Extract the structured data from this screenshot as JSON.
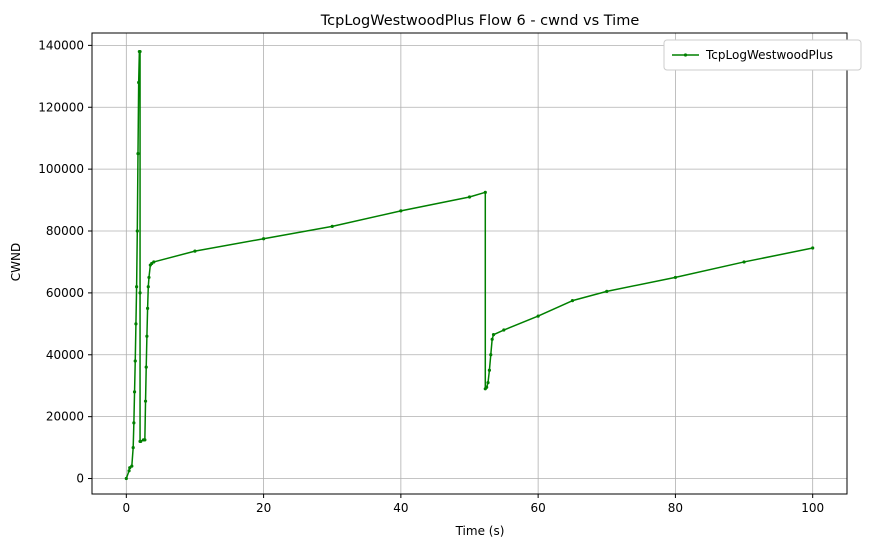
{
  "chart_data": {
    "type": "line",
    "title": "TcpLogWestwoodPlus Flow 6 - cwnd vs Time",
    "xlabel": "Time (s)",
    "ylabel": "CWND",
    "xlim": [
      -5,
      105
    ],
    "ylim": [
      -5000,
      144000
    ],
    "x_ticks": [
      0,
      20,
      40,
      60,
      80,
      100
    ],
    "x_tick_labels": [
      "0",
      "20",
      "40",
      "60",
      "80",
      "100"
    ],
    "y_ticks": [
      0,
      20000,
      40000,
      60000,
      80000,
      100000,
      120000,
      140000
    ],
    "y_tick_labels": [
      "0",
      "20000",
      "40000",
      "60000",
      "80000",
      "100000",
      "120000",
      "140000"
    ],
    "grid": true,
    "legend_position": "top-right",
    "series": [
      {
        "name": "TcpLogWestwoodPlus",
        "color": "#008000",
        "marker": "dot",
        "x": [
          0.0,
          0.4,
          0.5,
          0.8,
          1.0,
          1.1,
          1.2,
          1.3,
          1.4,
          1.5,
          1.6,
          1.7,
          1.8,
          1.9,
          2.0,
          2.0,
          2.0,
          2.1,
          2.5,
          2.7,
          2.8,
          2.9,
          3.0,
          3.1,
          3.2,
          3.3,
          3.5,
          3.7,
          4.0,
          10,
          20,
          30,
          40,
          50,
          52.3,
          52.3,
          52.5,
          52.7,
          52.9,
          53.1,
          53.3,
          53.5,
          55,
          60,
          65,
          70,
          80,
          90,
          100
        ],
        "y": [
          0,
          2500,
          3500,
          4000,
          10000,
          18000,
          28000,
          38000,
          50000,
          62000,
          80000,
          105000,
          128000,
          138000,
          138000,
          60000,
          12000,
          12000,
          12500,
          12500,
          25000,
          36000,
          46000,
          55000,
          62000,
          65000,
          69000,
          69500,
          70000,
          73500,
          77500,
          81500,
          86500,
          91000,
          92500,
          29000,
          29500,
          31000,
          35000,
          40000,
          45000,
          46500,
          48000,
          52500,
          57500,
          60500,
          65000,
          70000,
          74500
        ]
      }
    ]
  }
}
